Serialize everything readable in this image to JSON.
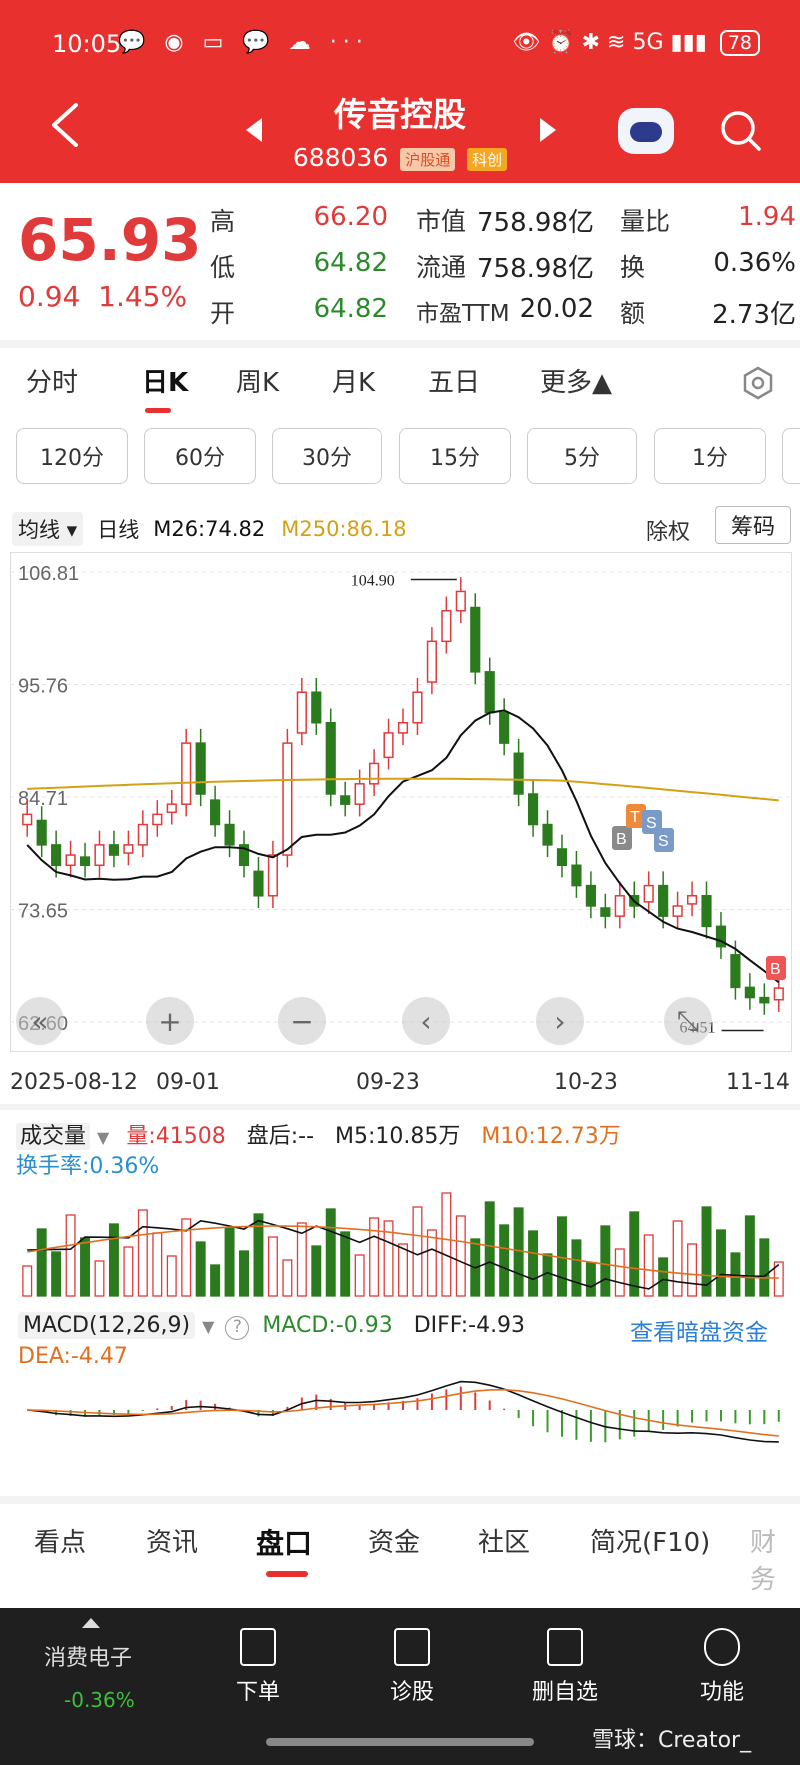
{
  "status_bar": {
    "time": "10:05",
    "left_icons": "💬 ◉ ▭ 💬 ☁ ···",
    "right_icons": "👁 ⏰ ✱ ≋ 5G ▮▮▮",
    "battery": "78"
  },
  "header": {
    "title": "传音控股",
    "code": "688036",
    "tag1": "沪股通",
    "tag2": "科创"
  },
  "quote": {
    "price": "65.93",
    "change": "0.94",
    "change_pct": "1.45%",
    "high_label": "高",
    "high": "66.20",
    "low_label": "低",
    "low": "64.82",
    "open_label": "开",
    "open": "64.82",
    "mktcap_label": "市值",
    "mktcap": "758.98亿",
    "float_label": "流通",
    "float": "758.98亿",
    "pe_label": "市盈TTM",
    "pe": "20.02",
    "volratio_label": "量比",
    "volratio": "1.94",
    "turnover_label": "换",
    "turnover": "0.36%",
    "amount_label": "额",
    "amount": "2.73亿"
  },
  "tabs": [
    "分时",
    "日K",
    "周K",
    "月K",
    "五日",
    "更多▲"
  ],
  "minute_buttons": [
    "120分",
    "60分",
    "30分",
    "15分",
    "5分",
    "1分"
  ],
  "ma_bar": {
    "dropdown": "均线 ▾",
    "period": "日线",
    "m26": "M26:74.82",
    "m250": "M250:86.18",
    "adjust": "除权",
    "chips": "筹码"
  },
  "kline": {
    "y_ticks": [
      "106.81",
      "95.76",
      "84.71",
      "73.65",
      "62.60"
    ],
    "high_note": "104.90",
    "low_note": "64.51",
    "x_dates": [
      "2025-08-12",
      "09-01",
      "09-23",
      "10-23",
      "11-14"
    ],
    "trade_marks": [
      "B",
      "T",
      "S",
      "S",
      "B"
    ]
  },
  "volume": {
    "dropdown": "成交量",
    "vol": "量:41508",
    "after": "盘后:--",
    "m5": "M5:10.85万",
    "m10": "M10:12.73万",
    "turnover": "换手率:0.36%"
  },
  "macd": {
    "dropdown": "MACD(12,26,9)",
    "macd": "MACD:-0.93",
    "diff": "DIFF:-4.93",
    "dea": "DEA:-4.47",
    "link": "查看暗盘资金"
  },
  "bottom_tabs": [
    "看点",
    "资讯",
    "盘口",
    "资金",
    "社区",
    "简况(F10)",
    "财务"
  ],
  "footer": {
    "sector": "消费电子",
    "sector_chg": "-0.36%",
    "items": [
      "下单",
      "诊股",
      "删自选",
      "功能"
    ],
    "watermark": "雪球：Creator_"
  },
  "colors": {
    "up": "#e03a3a",
    "down": "#2c7a1e",
    "accent": "#e8302f",
    "ma26": "#111111",
    "ma250": "#d4a017"
  },
  "chart_data": {
    "type": "candlestick",
    "candles_close_approx": [
      83,
      80,
      78,
      79,
      78,
      80,
      79,
      80,
      82,
      83,
      84,
      90,
      85,
      82,
      80,
      78,
      75,
      79,
      90,
      95,
      92,
      85,
      84,
      86,
      88,
      91,
      92,
      95,
      100,
      103,
      104.9,
      97,
      93,
      90,
      85,
      82,
      80,
      78,
      76,
      74,
      73,
      75,
      74,
      76,
      73,
      74,
      75,
      72,
      70,
      66,
      65,
      64.5,
      65.93
    ]
  }
}
